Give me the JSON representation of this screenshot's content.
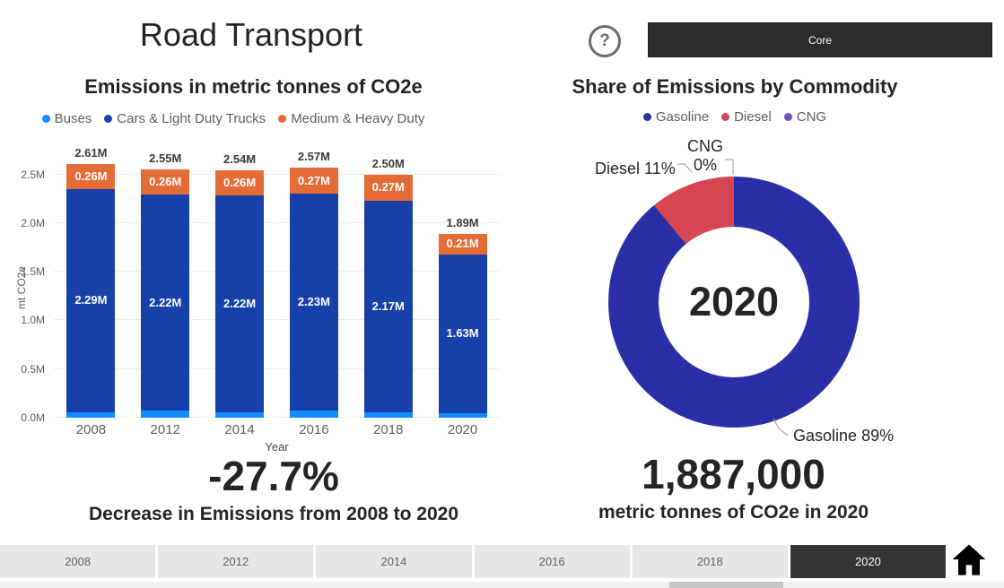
{
  "header": {
    "title": "Road Transport",
    "help_glyph": "?",
    "core_button": "Core"
  },
  "chart_data": [
    {
      "type": "bar",
      "stacked": true,
      "title": "Emissions in metric tonnes of CO2e",
      "xlabel": "Year",
      "ylabel": "mt CO2e",
      "ylim": [
        0,
        2.8
      ],
      "grid": true,
      "legend_position": "top",
      "ytick_labels": [
        "0.0M",
        "0.5M",
        "1.0M",
        "1.5M",
        "2.0M",
        "2.5M"
      ],
      "categories": [
        "2008",
        "2012",
        "2014",
        "2016",
        "2018",
        "2020"
      ],
      "series": [
        {
          "name": "Buses",
          "color": "#118DFF",
          "values": [
            0.06,
            0.07,
            0.06,
            0.07,
            0.06,
            0.05
          ],
          "labels": [
            "",
            "",
            "",
            "",
            "",
            ""
          ]
        },
        {
          "name": "Cars & Light Duty Trucks",
          "color": "#1741A8",
          "values": [
            2.29,
            2.22,
            2.22,
            2.23,
            2.17,
            1.63
          ],
          "labels": [
            "2.29M",
            "2.22M",
            "2.22M",
            "2.23M",
            "2.17M",
            "1.63M"
          ]
        },
        {
          "name": "Medium & Heavy Duty",
          "color": "#E66C37",
          "values": [
            0.26,
            0.26,
            0.26,
            0.27,
            0.27,
            0.21
          ],
          "labels": [
            "0.26M",
            "0.26M",
            "0.26M",
            "0.27M",
            "0.27M",
            "0.21M"
          ]
        }
      ],
      "totals": [
        "2.61M",
        "2.55M",
        "2.54M",
        "2.57M",
        "2.50M",
        "1.89M"
      ]
    },
    {
      "type": "pie",
      "subtype": "donut",
      "title": "Share of Emissions by Commodity",
      "center_label": "2020",
      "legend_position": "top",
      "slices": [
        {
          "name": "Gasoline",
          "pct": 89,
          "pct_label": "89%",
          "color": "#2A2FA8"
        },
        {
          "name": "Diesel",
          "pct": 11,
          "pct_label": "11%",
          "color": "#D64550"
        },
        {
          "name": "CNG",
          "pct": 0,
          "pct_label": "0%",
          "color": "#744EC2"
        }
      ]
    }
  ],
  "cards": {
    "left": {
      "value": "-27.7%",
      "caption": "Decrease in Emissions from 2008 to 2020"
    },
    "right": {
      "value": "1,887,000",
      "caption": "metric tonnes of CO2e in 2020"
    }
  },
  "slicer": {
    "years": [
      "2008",
      "2012",
      "2014",
      "2016",
      "2018",
      "2020"
    ],
    "selected": "2020"
  }
}
